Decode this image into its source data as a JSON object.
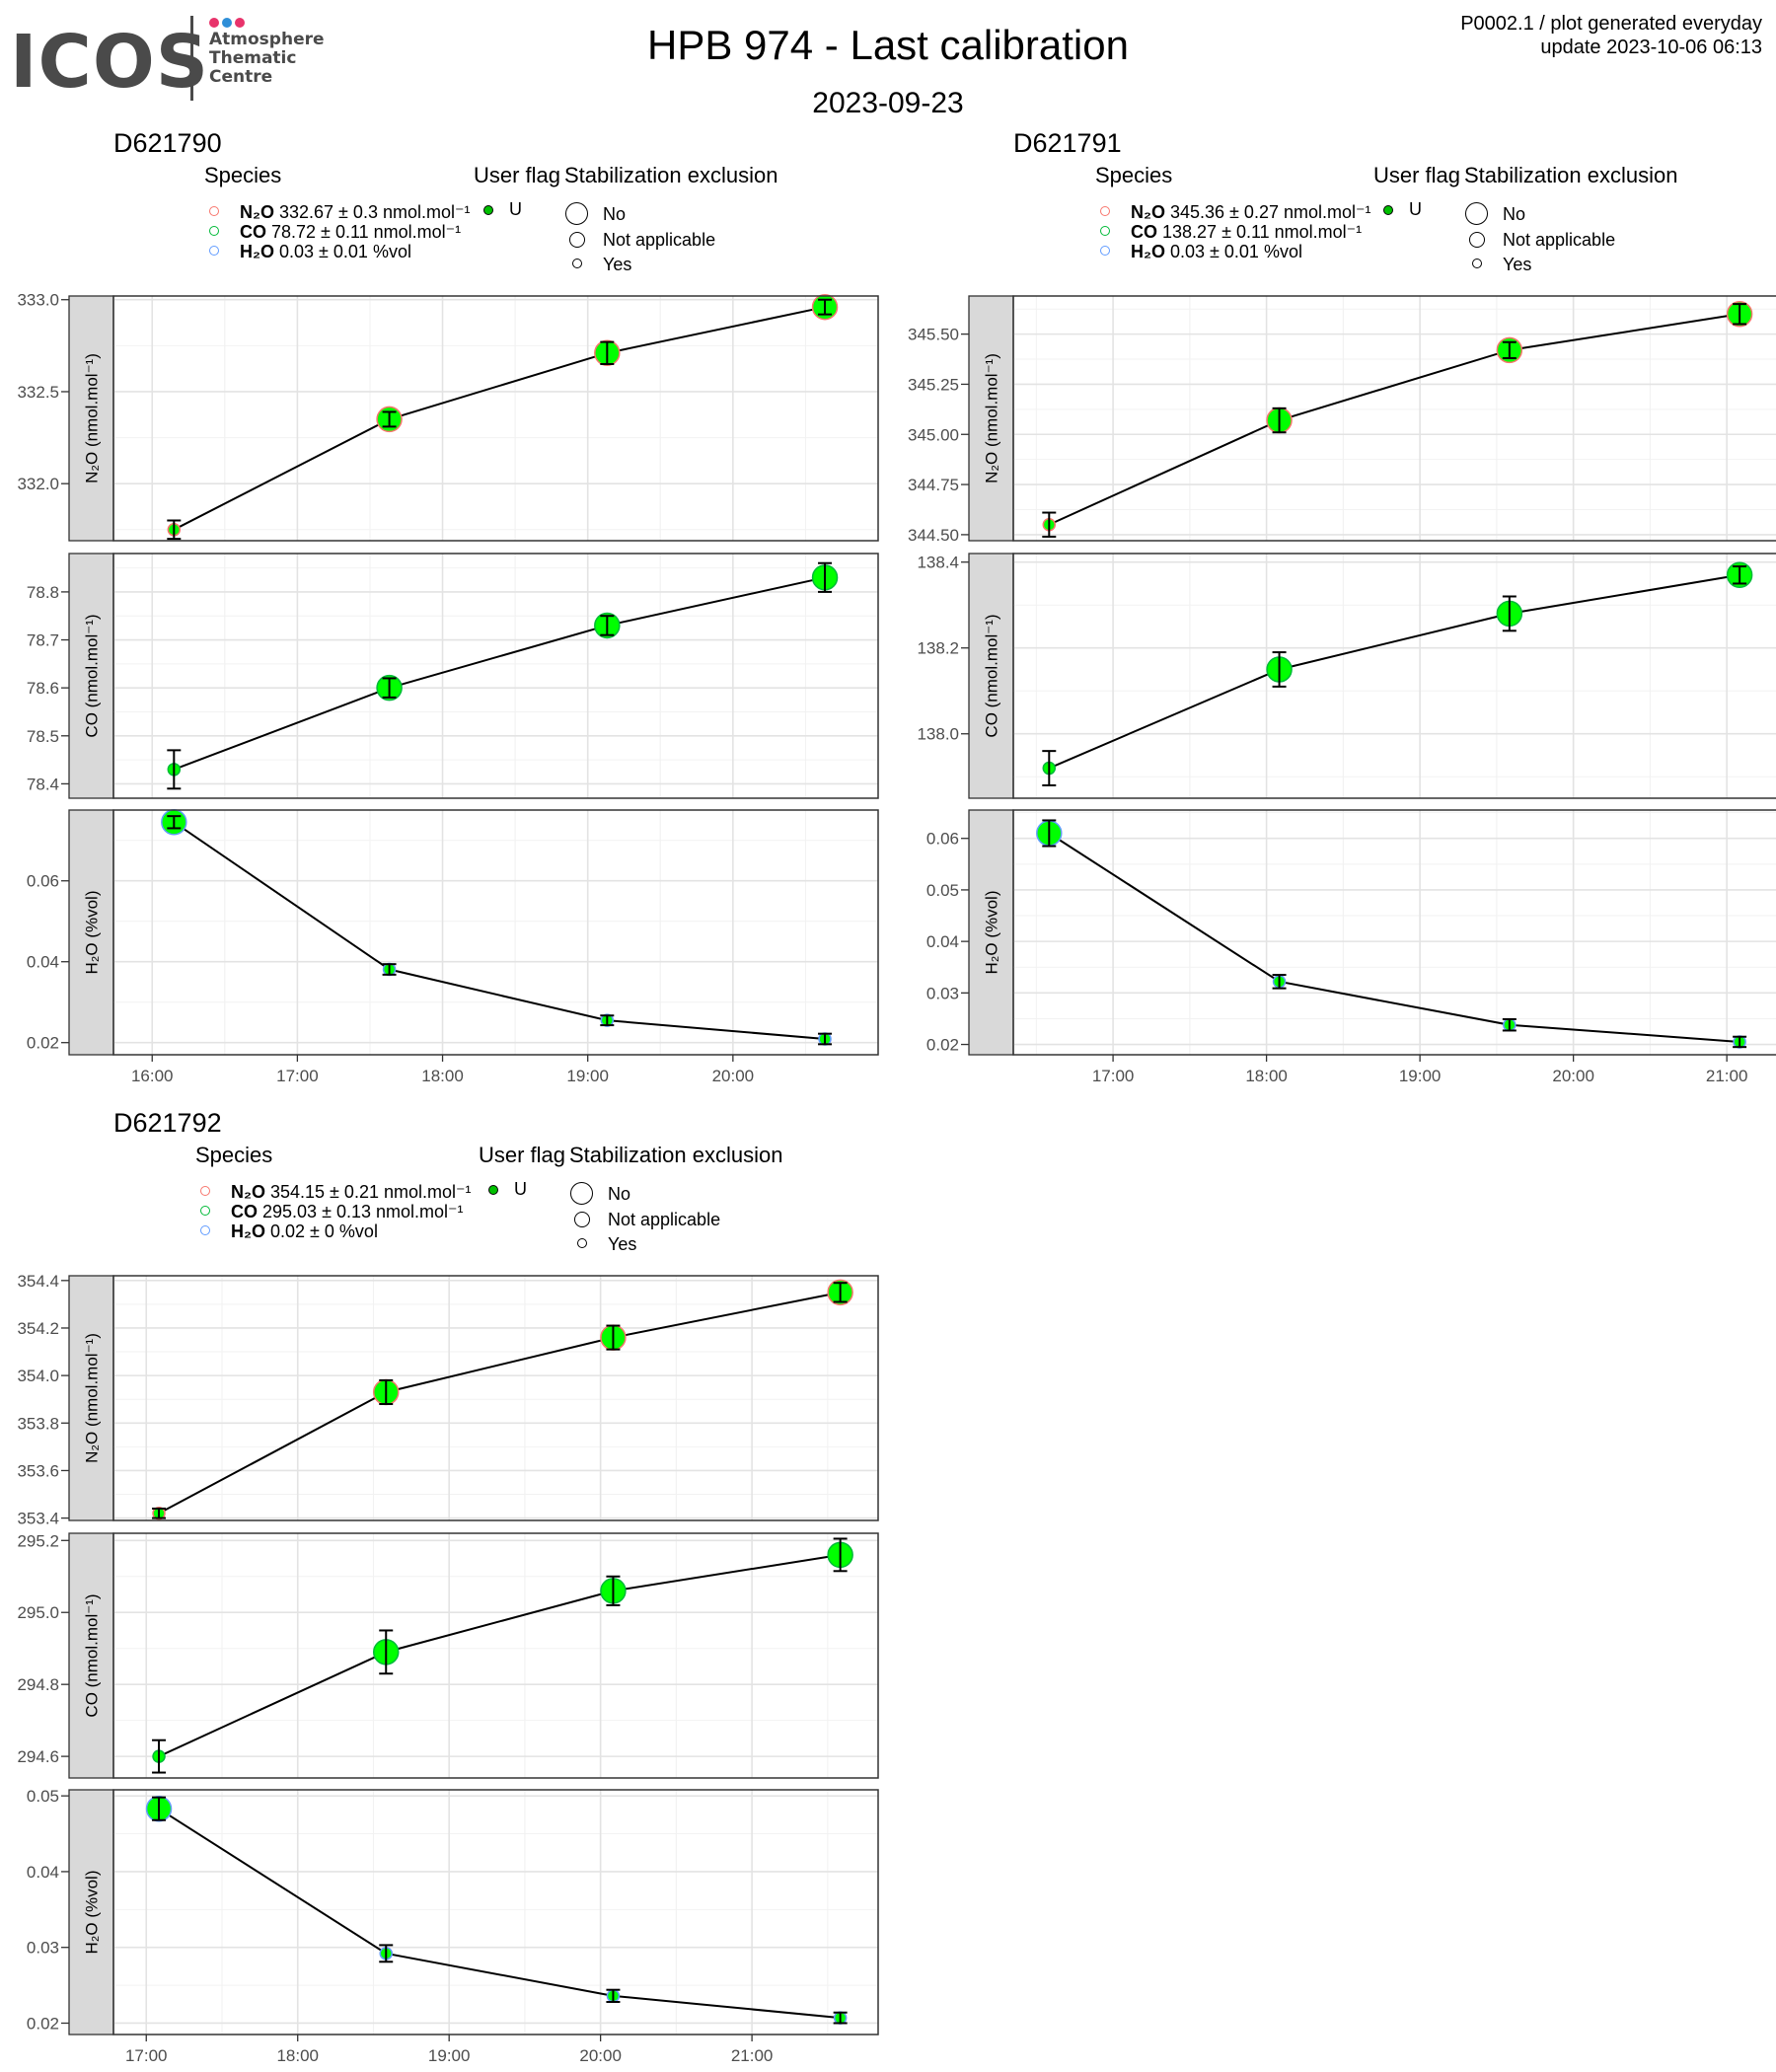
{
  "header": {
    "logo": {
      "word": "ICOS",
      "lines": [
        "Atmosphere",
        "Thematic",
        "Centre"
      ],
      "dot_colors": [
        "#e8336b",
        "#2f8fd8",
        "#e8336b"
      ]
    },
    "title": "HPB 974 - Last calibration",
    "date": "2023-09-23",
    "corner_line1": "P0002.1 / plot generated everyday",
    "corner_line2": "update  2023-10-06 06:13"
  },
  "legend_labels": {
    "species": "Species",
    "user_flag": "User flag",
    "stabilization": "Stabilization exclusion",
    "flag_value": "U",
    "size_no": "No",
    "size_na": "Not applicable",
    "size_yes": "Yes"
  },
  "colors": {
    "n2o": "#f8766d",
    "co": "#00ba38",
    "h2o": "#619cff",
    "point_fill": "#00ff00",
    "flag_dot": "#00c000"
  },
  "sensors": [
    {
      "id": "D621790",
      "legend": [
        {
          "species": "N2O",
          "text": "332.67 ± 0.3 nmol.mol⁻¹"
        },
        {
          "species": "CO",
          "text": "78.72 ± 0.11 nmol.mol⁻¹"
        },
        {
          "species": "H2O",
          "text": "0.03 ± 0.01 %vol"
        }
      ],
      "x_ticks": [
        "16:00",
        "17:00",
        "18:00",
        "19:00",
        "20:00"
      ]
    },
    {
      "id": "D621791",
      "legend": [
        {
          "species": "N2O",
          "text": "345.36 ± 0.27 nmol.mol⁻¹"
        },
        {
          "species": "CO",
          "text": "138.27 ± 0.11 nmol.mol⁻¹"
        },
        {
          "species": "H2O",
          "text": "0.03 ± 0.01 %vol"
        }
      ],
      "x_ticks": [
        "17:00",
        "18:00",
        "19:00",
        "20:00",
        "21:00"
      ]
    },
    {
      "id": "D621792",
      "legend": [
        {
          "species": "N2O",
          "text": "354.15 ± 0.21 nmol.mol⁻¹"
        },
        {
          "species": "CO",
          "text": "295.03 ± 0.13 nmol.mol⁻¹"
        },
        {
          "species": "H2O",
          "text": "0.02 ± 0 %vol"
        }
      ],
      "x_ticks": [
        "17:00",
        "18:00",
        "19:00",
        "20:00",
        "21:00"
      ]
    }
  ],
  "chart_data": [
    {
      "type": "line",
      "sensor": "D621790",
      "panel": "N2O",
      "ylabel": "N₂O (nmol.mol⁻¹)",
      "x": [
        "16:09",
        "17:38",
        "19:08",
        "20:38"
      ],
      "values": [
        331.75,
        332.35,
        332.71,
        332.96
      ],
      "errors": [
        0.05,
        0.04,
        0.06,
        0.04
      ],
      "sizes": [
        "Yes",
        "No",
        "No",
        "No"
      ],
      "xlim": [
        "15:44",
        "21:00"
      ],
      "ylim": [
        331.69,
        333.02
      ],
      "yticks": [
        "332.0",
        "332.5",
        "333.0"
      ],
      "ytick_values": [
        332.0,
        332.5,
        333.0
      ]
    },
    {
      "type": "line",
      "sensor": "D621790",
      "panel": "CO",
      "ylabel": "CO (nmol.mol⁻¹)",
      "x": [
        "16:09",
        "17:38",
        "19:08",
        "20:38"
      ],
      "values": [
        78.43,
        78.6,
        78.73,
        78.83
      ],
      "errors": [
        0.04,
        0.02,
        0.02,
        0.03
      ],
      "sizes": [
        "Yes",
        "No",
        "No",
        "No"
      ],
      "xlim": [
        "15:44",
        "21:00"
      ],
      "ylim": [
        78.37,
        78.88
      ],
      "yticks": [
        "78.4",
        "78.5",
        "78.6",
        "78.7",
        "78.8"
      ],
      "ytick_values": [
        78.4,
        78.5,
        78.6,
        78.7,
        78.8
      ]
    },
    {
      "type": "line",
      "sensor": "D621790",
      "panel": "H2O",
      "ylabel": "H₂O (%vol)",
      "x": [
        "16:09",
        "17:38",
        "19:08",
        "20:38"
      ],
      "values": [
        0.0745,
        0.0381,
        0.0255,
        0.0209
      ],
      "errors": [
        0.0015,
        0.0013,
        0.0012,
        0.0013
      ],
      "sizes": [
        "No",
        "Yes",
        "Yes",
        "Yes"
      ],
      "xlim": [
        "15:44",
        "21:00"
      ],
      "ylim": [
        0.017,
        0.0775
      ],
      "yticks": [
        "0.02",
        "0.04",
        "0.06"
      ],
      "ytick_values": [
        0.02,
        0.04,
        0.06
      ]
    },
    {
      "type": "line",
      "sensor": "D621791",
      "panel": "N2O",
      "ylabel": "N₂O (nmol.mol⁻¹)",
      "x": [
        "16:35",
        "18:05",
        "19:35",
        "21:05"
      ],
      "values": [
        344.55,
        345.07,
        345.42,
        345.6
      ],
      "errors": [
        0.06,
        0.06,
        0.04,
        0.05
      ],
      "sizes": [
        "Yes",
        "No",
        "No",
        "No"
      ],
      "xlim": [
        "16:21",
        "21:20"
      ],
      "ylim": [
        344.47,
        345.69
      ],
      "yticks": [
        "344.50",
        "344.75",
        "345.00",
        "345.25",
        "345.50"
      ],
      "ytick_values": [
        344.5,
        344.75,
        345.0,
        345.25,
        345.5
      ]
    },
    {
      "type": "line",
      "sensor": "D621791",
      "panel": "CO",
      "ylabel": "CO (nmol.mol⁻¹)",
      "x": [
        "16:35",
        "18:05",
        "19:35",
        "21:05"
      ],
      "values": [
        137.92,
        138.15,
        138.28,
        138.37
      ],
      "errors": [
        0.04,
        0.04,
        0.04,
        0.02
      ],
      "sizes": [
        "Yes",
        "No",
        "No",
        "No"
      ],
      "xlim": [
        "16:21",
        "21:20"
      ],
      "ylim": [
        137.85,
        138.42
      ],
      "yticks": [
        "138.0",
        "138.2",
        "138.4"
      ],
      "ytick_values": [
        138.0,
        138.2,
        138.4
      ]
    },
    {
      "type": "line",
      "sensor": "D621791",
      "panel": "H2O",
      "ylabel": "H₂O (%vol)",
      "x": [
        "16:35",
        "18:05",
        "19:35",
        "21:05"
      ],
      "values": [
        0.061,
        0.0322,
        0.0238,
        0.0205
      ],
      "errors": [
        0.0025,
        0.0013,
        0.0011,
        0.001
      ],
      "sizes": [
        "No",
        "Yes",
        "Yes",
        "Yes"
      ],
      "xlim": [
        "16:21",
        "21:20"
      ],
      "ylim": [
        0.018,
        0.0655
      ],
      "yticks": [
        "0.02",
        "0.03",
        "0.04",
        "0.05",
        "0.06"
      ],
      "ytick_values": [
        0.02,
        0.03,
        0.04,
        0.05,
        0.06
      ]
    },
    {
      "type": "line",
      "sensor": "D621792",
      "panel": "N2O",
      "ylabel": "N₂O (nmol.mol⁻¹)",
      "x": [
        "17:05",
        "18:35",
        "20:05",
        "21:35"
      ],
      "values": [
        353.42,
        353.93,
        354.16,
        354.35
      ],
      "errors": [
        0.02,
        0.05,
        0.05,
        0.04
      ],
      "sizes": [
        "Yes",
        "No",
        "No",
        "No"
      ],
      "xlim": [
        "16:47",
        "21:50"
      ],
      "ylim": [
        353.39,
        354.42
      ],
      "yticks": [
        "353.4",
        "353.6",
        "353.8",
        "354.0",
        "354.2",
        "354.4"
      ],
      "ytick_values": [
        353.4,
        353.6,
        353.8,
        354.0,
        354.2,
        354.4
      ]
    },
    {
      "type": "line",
      "sensor": "D621792",
      "panel": "CO",
      "ylabel": "CO (nmol.mol⁻¹)",
      "x": [
        "17:05",
        "18:35",
        "20:05",
        "21:35"
      ],
      "values": [
        294.6,
        294.89,
        295.06,
        295.16
      ],
      "errors": [
        0.045,
        0.06,
        0.04,
        0.045
      ],
      "sizes": [
        "Yes",
        "No",
        "No",
        "No"
      ],
      "xlim": [
        "16:47",
        "21:50"
      ],
      "ylim": [
        294.54,
        295.22
      ],
      "yticks": [
        "294.6",
        "294.8",
        "295.0",
        "295.2"
      ],
      "ytick_values": [
        294.6,
        294.8,
        295.0,
        295.2
      ]
    },
    {
      "type": "line",
      "sensor": "D621792",
      "panel": "H2O",
      "ylabel": "H₂O (%vol)",
      "x": [
        "17:05",
        "18:35",
        "20:05",
        "21:35"
      ],
      "values": [
        0.0483,
        0.0292,
        0.0236,
        0.0207
      ],
      "errors": [
        0.0015,
        0.0011,
        0.0008,
        0.0007
      ],
      "sizes": [
        "No",
        "Yes",
        "Yes",
        "Yes"
      ],
      "xlim": [
        "16:47",
        "21:50"
      ],
      "ylim": [
        0.0185,
        0.0508
      ],
      "yticks": [
        "0.02",
        "0.03",
        "0.04",
        "0.05"
      ],
      "ytick_values": [
        0.02,
        0.03,
        0.04,
        0.05
      ]
    }
  ]
}
